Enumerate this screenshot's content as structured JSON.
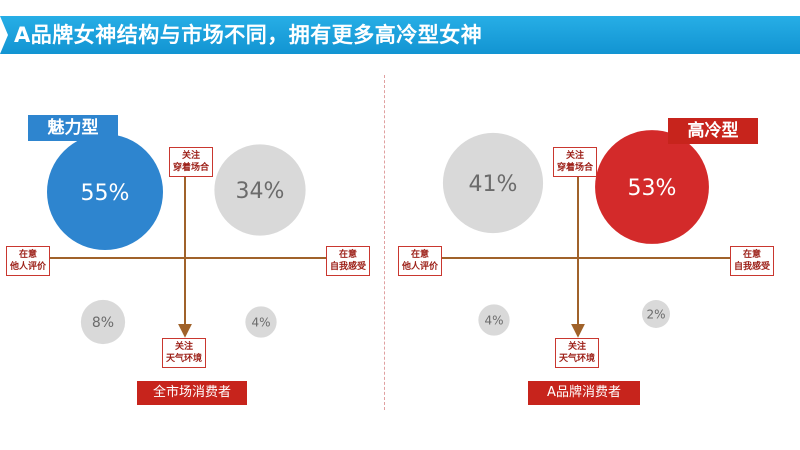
{
  "title": "A品牌女神结构与市场不同，拥有更多高冷型女神",
  "colors": {
    "title_bar": "#1a9ad8",
    "charm": "#2e85cf",
    "cool": "#d32a2a",
    "bubble_gray": "#d9d9d9",
    "axis": "#a0622a",
    "label_border": "#c9372f"
  },
  "axis_labels": {
    "top": "关注\n穿着场合",
    "bottom": "关注\n天气环境",
    "left": "在意\n他人评价",
    "right": "在意\n自我感受"
  },
  "chart_data": [
    {
      "type": "bubble",
      "segment": "全市场消费者",
      "badge": "魅力型",
      "quadrants": [
        "top-left",
        "top-right",
        "bottom-left",
        "bottom-right"
      ],
      "values": [
        55,
        34,
        8,
        4
      ],
      "labels": [
        "55%",
        "34%",
        "8%",
        "4%"
      ],
      "highlight": "top-left"
    },
    {
      "type": "bubble",
      "segment": "A品牌消费者",
      "badge": "高冷型",
      "quadrants": [
        "top-left",
        "top-right",
        "bottom-left",
        "bottom-right"
      ],
      "values": [
        41,
        53,
        4,
        2
      ],
      "labels": [
        "41%",
        "53%",
        "4%",
        "2%"
      ],
      "highlight": "top-right"
    }
  ]
}
